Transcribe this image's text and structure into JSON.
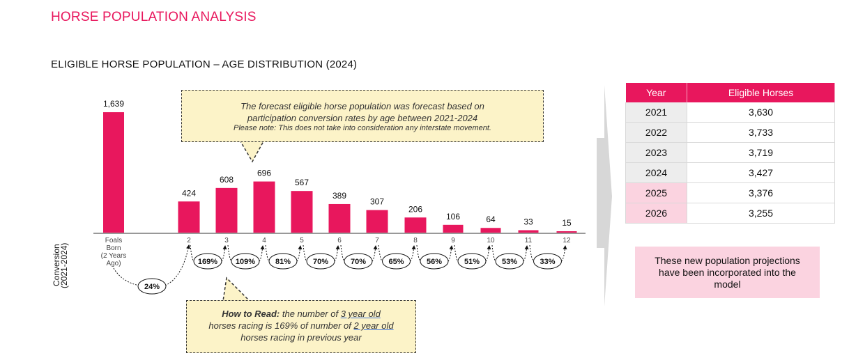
{
  "page_title": "HORSE POPULATION ANALYSIS",
  "chart_data": {
    "type": "bar",
    "title": "ELIGIBLE HORSE POPULATION – AGE DISTRIBUTION (2024)",
    "categories": [
      "Foals Born (2 Years Ago)",
      "2",
      "3",
      "4",
      "5",
      "6",
      "7",
      "8",
      "9",
      "10",
      "11",
      "12"
    ],
    "category_labels": [
      "Foals\nBorn\n(2 Years\nAgo)",
      "2",
      "3",
      "4",
      "5",
      "6",
      "7",
      "8",
      "9",
      "10",
      "11",
      "12"
    ],
    "values": [
      1639,
      424,
      608,
      696,
      567,
      389,
      307,
      206,
      106,
      64,
      33,
      15
    ],
    "value_labels": [
      "1,639",
      "424",
      "608",
      "696",
      "567",
      "389",
      "307",
      "206",
      "106",
      "64",
      "33",
      "15"
    ],
    "bar_color": "#e8175d",
    "conversion_label": "Conversion\n(2021-2024)",
    "foal_conversion": "24%",
    "conversion_rates": [
      "169%",
      "109%",
      "81%",
      "70%",
      "70%",
      "65%",
      "56%",
      "51%",
      "53%",
      "33%"
    ]
  },
  "callout_top": {
    "line1": "The forecast eligible horse population was forecast based on",
    "line2": "participation conversion rates by age between 2021-2024",
    "note": "Please note: This does not take into consideration any interstate movement."
  },
  "callout_bottom": {
    "bold": "How to Read:",
    "part1": " the number of ",
    "link1": "3 year old",
    "part2": "horses racing is 169% of number of ",
    "link2": "2 year old",
    "part3": "horses racing in previous year"
  },
  "table": {
    "headers": [
      "Year",
      "Eligible Horses"
    ],
    "rows": [
      {
        "year": "2021",
        "value": "3,630"
      },
      {
        "year": "2022",
        "value": "3,733"
      },
      {
        "year": "2023",
        "value": "3,719"
      },
      {
        "year": "2024",
        "value": "3,427"
      },
      {
        "year": "2025",
        "value": "3,376"
      },
      {
        "year": "2026",
        "value": "3,255"
      }
    ]
  },
  "side_note": "These new population projections have been incorporated into the model"
}
